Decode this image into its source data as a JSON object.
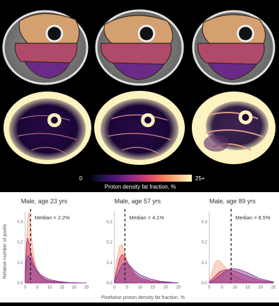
{
  "colorbar": {
    "min_label": "0",
    "max_label": "25+",
    "title": "Proton density fat fraction, %",
    "stops": [
      "#000004",
      "#1d1147",
      "#51127c",
      "#822681",
      "#b63679",
      "#e65164",
      "#fb8861",
      "#fec287",
      "#fcfdbf"
    ]
  },
  "subjects": [
    {
      "label": "Male, age 23 yrs"
    },
    {
      "label": "Male, age 57 yrs"
    },
    {
      "label": "Male, age 89 yrs"
    }
  ],
  "chart_data": [
    {
      "type": "area",
      "title": "Male, age 23 yrs",
      "annotation": "Median = 2.2%",
      "median": 2.2,
      "xlim": [
        0,
        25
      ],
      "ylim": [
        0,
        0.35
      ],
      "xticks": [
        0,
        5,
        10,
        15,
        20,
        25
      ],
      "yticks": [
        0.0,
        0.1,
        0.2,
        0.3
      ],
      "ylabel": "Relative number of pixels",
      "series": [
        {
          "color": "#f4a582",
          "x": [
            0,
            0.5,
            1,
            1.5,
            2,
            2.5,
            3,
            4,
            5,
            6,
            8,
            10,
            14,
            18,
            25
          ],
          "y": [
            0.05,
            0.2,
            0.3,
            0.35,
            0.31,
            0.24,
            0.18,
            0.1,
            0.06,
            0.035,
            0.015,
            0.008,
            0.003,
            0.001,
            0
          ]
        },
        {
          "color": "#c2185b",
          "x": [
            0,
            0.5,
            1,
            1.5,
            2,
            3,
            4,
            5,
            6,
            8,
            10,
            14,
            18,
            25
          ],
          "y": [
            0.05,
            0.18,
            0.22,
            0.2,
            0.17,
            0.12,
            0.08,
            0.055,
            0.037,
            0.018,
            0.01,
            0.004,
            0.001,
            0
          ]
        },
        {
          "color": "#7b3294",
          "x": [
            0,
            0.5,
            1,
            1.5,
            2,
            3,
            4,
            5,
            6,
            8,
            10,
            14,
            18,
            25
          ],
          "y": [
            0.03,
            0.11,
            0.135,
            0.13,
            0.12,
            0.095,
            0.075,
            0.06,
            0.045,
            0.028,
            0.017,
            0.007,
            0.002,
            0
          ]
        }
      ]
    },
    {
      "type": "area",
      "title": "Male, age 57 yrs",
      "annotation": "Median = 4.1%",
      "median": 4.1,
      "xlim": [
        0,
        25
      ],
      "ylim": [
        0,
        0.35
      ],
      "xticks": [
        0,
        5,
        10,
        15,
        20,
        25
      ],
      "yticks": [
        0.0,
        0.1,
        0.2,
        0.3
      ],
      "ylabel": "",
      "series": [
        {
          "color": "#f4a582",
          "x": [
            0,
            1,
            2,
            3,
            4,
            5,
            6,
            8,
            10,
            14,
            18,
            25
          ],
          "y": [
            0.02,
            0.12,
            0.18,
            0.19,
            0.15,
            0.1,
            0.065,
            0.03,
            0.015,
            0.005,
            0.002,
            0
          ]
        },
        {
          "color": "#c2185b",
          "x": [
            0,
            1,
            2,
            3,
            4,
            5,
            6,
            8,
            10,
            14,
            18,
            25
          ],
          "y": [
            0.01,
            0.07,
            0.12,
            0.14,
            0.13,
            0.105,
            0.08,
            0.045,
            0.025,
            0.01,
            0.004,
            0
          ]
        },
        {
          "color": "#7b3294",
          "x": [
            0,
            1,
            2,
            3,
            4,
            5,
            6,
            8,
            10,
            14,
            18,
            25
          ],
          "y": [
            0.005,
            0.035,
            0.065,
            0.09,
            0.1,
            0.095,
            0.085,
            0.06,
            0.04,
            0.02,
            0.008,
            0
          ]
        }
      ]
    },
    {
      "type": "area",
      "title": "Male, age 89 yrs",
      "annotation": "Median = 8.5%",
      "median": 8.5,
      "xlim": [
        0,
        25
      ],
      "ylim": [
        0,
        0.35
      ],
      "xticks": [
        0,
        5,
        10,
        15,
        20,
        25
      ],
      "yticks": [
        0.0,
        0.1,
        0.2,
        0.3
      ],
      "ylabel": "",
      "series": [
        {
          "color": "#f4a582",
          "x": [
            0,
            1,
            2,
            3,
            4,
            5,
            6,
            8,
            10,
            12,
            15,
            20,
            25
          ],
          "y": [
            0.01,
            0.05,
            0.09,
            0.11,
            0.11,
            0.095,
            0.08,
            0.055,
            0.035,
            0.022,
            0.01,
            0.003,
            0
          ]
        },
        {
          "color": "#c2185b",
          "x": [
            0,
            2,
            4,
            6,
            8,
            10,
            12,
            15,
            18,
            20,
            25
          ],
          "y": [
            0.005,
            0.03,
            0.055,
            0.065,
            0.065,
            0.058,
            0.048,
            0.033,
            0.02,
            0.012,
            0.002
          ]
        },
        {
          "color": "#7b3294",
          "x": [
            0,
            2,
            4,
            6,
            8,
            10,
            12,
            15,
            18,
            20,
            25
          ],
          "y": [
            0.003,
            0.015,
            0.035,
            0.055,
            0.068,
            0.07,
            0.065,
            0.05,
            0.032,
            0.02,
            0.005
          ]
        }
      ]
    }
  ],
  "xlabel": "Pixelwise proton density fat fraction, %"
}
